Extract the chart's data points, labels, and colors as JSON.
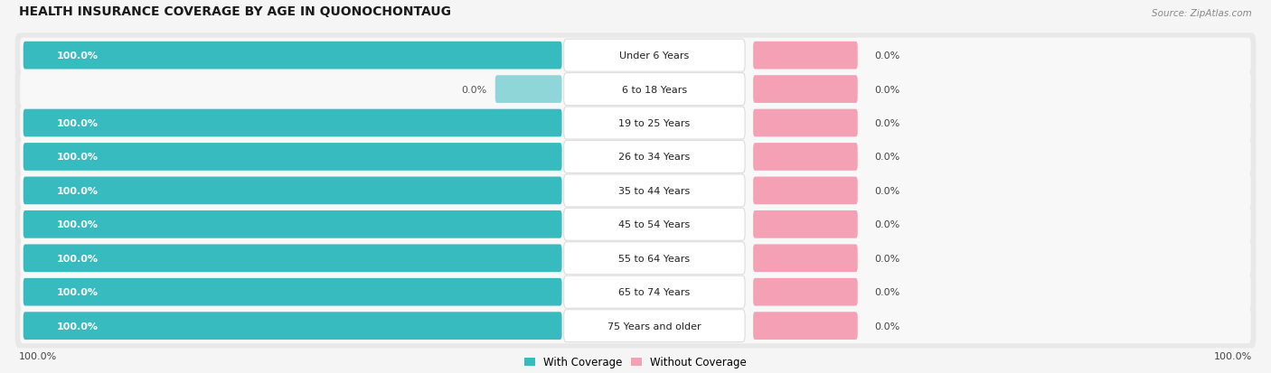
{
  "title": "HEALTH INSURANCE COVERAGE BY AGE IN QUONOCHONTAUG",
  "source": "Source: ZipAtlas.com",
  "categories": [
    "Under 6 Years",
    "6 to 18 Years",
    "19 to 25 Years",
    "26 to 34 Years",
    "35 to 44 Years",
    "45 to 54 Years",
    "55 to 64 Years",
    "65 to 74 Years",
    "75 Years and older"
  ],
  "with_coverage": [
    100.0,
    0.0,
    100.0,
    100.0,
    100.0,
    100.0,
    100.0,
    100.0,
    100.0
  ],
  "without_coverage": [
    0.0,
    0.0,
    0.0,
    0.0,
    0.0,
    0.0,
    0.0,
    0.0,
    0.0
  ],
  "color_with": "#38bbbf",
  "color_with_light": "#8fd6d8",
  "color_without": "#f4a0b5",
  "background_color": "#f5f5f5",
  "row_bg_color": "#e8e8e8",
  "row_inner_color": "#f8f8f8",
  "title_fontsize": 10,
  "label_fontsize": 8,
  "value_fontsize": 8,
  "legend_fontsize": 8.5,
  "tick_fontsize": 8
}
